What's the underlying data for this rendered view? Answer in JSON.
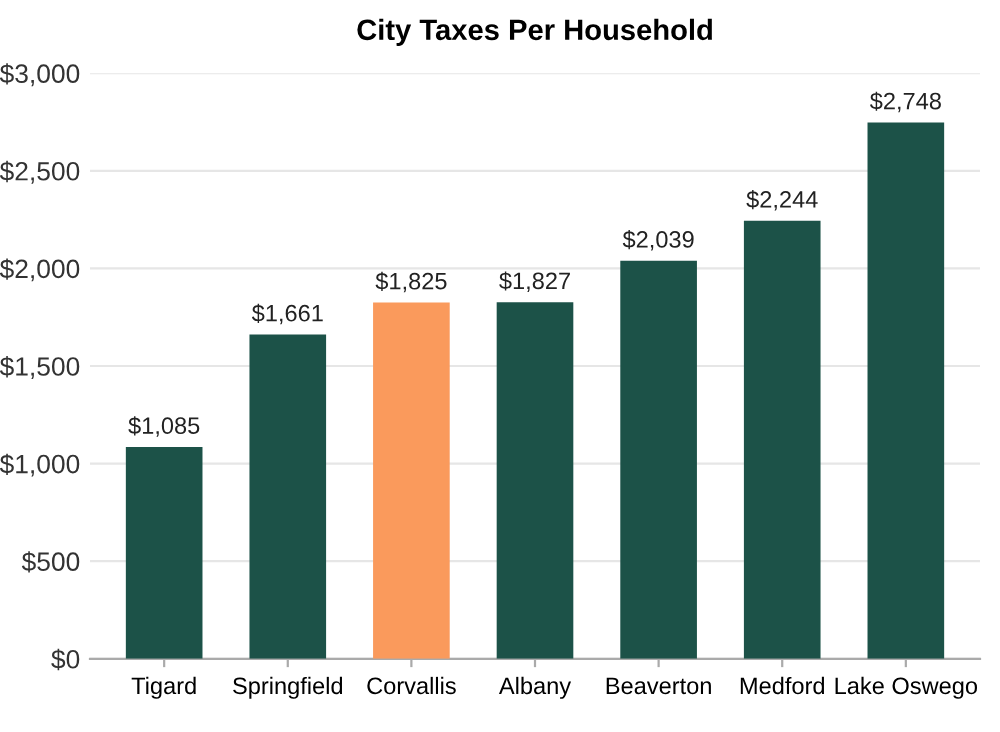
{
  "chart_data": {
    "type": "bar",
    "title": "City Taxes Per Household",
    "categories": [
      "Tigard",
      "Springfield",
      "Corvallis",
      "Albany",
      "Beaverton",
      "Medford",
      "Lake Oswego"
    ],
    "values": [
      1085,
      1661,
      1825,
      1827,
      2039,
      2244,
      2748
    ],
    "colors": [
      "#1c5248",
      "#1c5248",
      "#fa9a5c",
      "#1c5248",
      "#1c5248",
      "#1c5248",
      "#1c5248"
    ],
    "value_labels": [
      "$1,085",
      "$1,661",
      "$1,825",
      "$1,827",
      "$2,039",
      "$2,244",
      "$2,748"
    ],
    "ylim": [
      0,
      3000
    ],
    "yticks": [
      {
        "value": 0,
        "label": "$0"
      },
      {
        "value": 500,
        "label": "$500"
      },
      {
        "value": 1000,
        "label": "$1,000"
      },
      {
        "value": 1500,
        "label": "$1,500"
      },
      {
        "value": 2000,
        "label": "$2,000"
      },
      {
        "value": 2500,
        "label": "$2,500"
      },
      {
        "value": 3000,
        "label": "$3,000"
      }
    ],
    "grid": "y"
  }
}
